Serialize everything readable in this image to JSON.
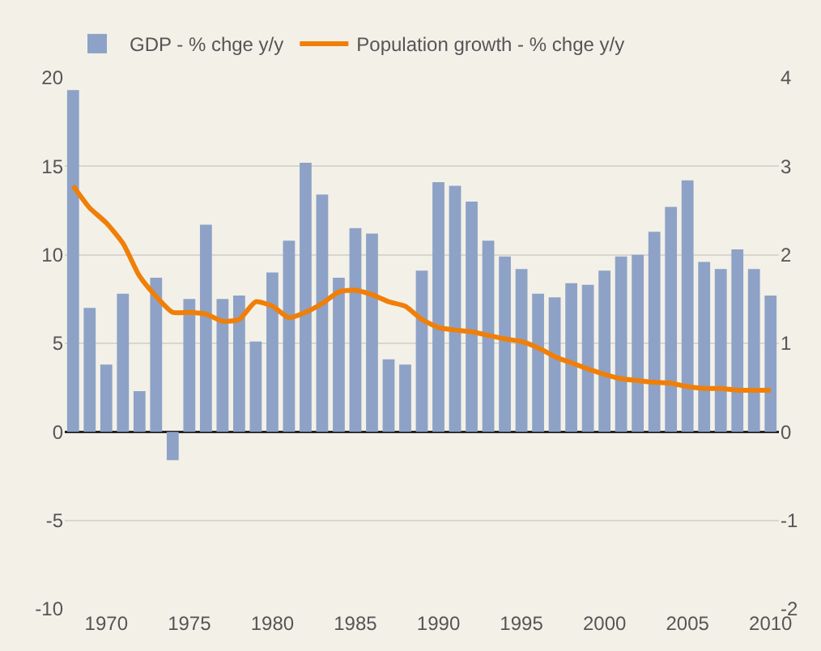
{
  "chart_data": {
    "type": "bar",
    "categories": [
      null,
      null,
      "1970",
      null,
      null,
      null,
      null,
      "1975",
      null,
      null,
      null,
      null,
      "1980",
      null,
      null,
      null,
      null,
      "1985",
      null,
      null,
      null,
      null,
      "1990",
      null,
      null,
      null,
      null,
      "1995",
      null,
      null,
      null,
      null,
      "2000",
      null,
      null,
      null,
      null,
      "2005",
      null,
      null,
      null,
      null,
      "2010"
    ],
    "series": [
      {
        "name": "GDP - % chge y/y",
        "color": "#8da2c6",
        "values": [
          19.3,
          7.0,
          3.8,
          7.8,
          2.3,
          8.7,
          -1.6,
          7.5,
          11.7,
          7.5,
          7.7,
          5.1,
          9.0,
          10.8,
          15.2,
          13.4,
          8.7,
          11.5,
          11.2,
          4.1,
          3.8,
          9.1,
          14.1,
          13.9,
          13.0,
          10.8,
          9.9,
          9.2,
          7.8,
          7.6,
          8.4,
          8.3,
          9.1,
          9.9,
          10.0,
          11.3,
          12.7,
          14.2,
          9.6,
          9.2,
          10.3,
          9.2,
          7.7
        ]
      },
      {
        "name": "Population growth - % chge y/y",
        "type": "line",
        "axis": "y2",
        "color": "#f07f09",
        "values": [
          2.78,
          2.53,
          2.36,
          2.13,
          1.76,
          1.53,
          1.35,
          1.35,
          1.33,
          1.25,
          1.27,
          1.47,
          1.42,
          1.29,
          1.35,
          1.45,
          1.58,
          1.6,
          1.55,
          1.47,
          1.42,
          1.27,
          1.18,
          1.15,
          1.13,
          1.09,
          1.05,
          1.02,
          0.95,
          0.85,
          0.78,
          0.71,
          0.65,
          0.6,
          0.58,
          0.56,
          0.55,
          0.51,
          0.49,
          0.49,
          0.47,
          0.47,
          0.47
        ]
      }
    ],
    "ylim": [
      -10,
      20
    ],
    "yticks": [
      -10,
      -5,
      0,
      5,
      10,
      15,
      20
    ],
    "y2lim": [
      -2,
      4
    ],
    "y2ticks": [
      -2,
      -1,
      0,
      1,
      2,
      3,
      4
    ],
    "grid": "y",
    "legend": "top",
    "marker": "none",
    "line_style": "solid"
  }
}
